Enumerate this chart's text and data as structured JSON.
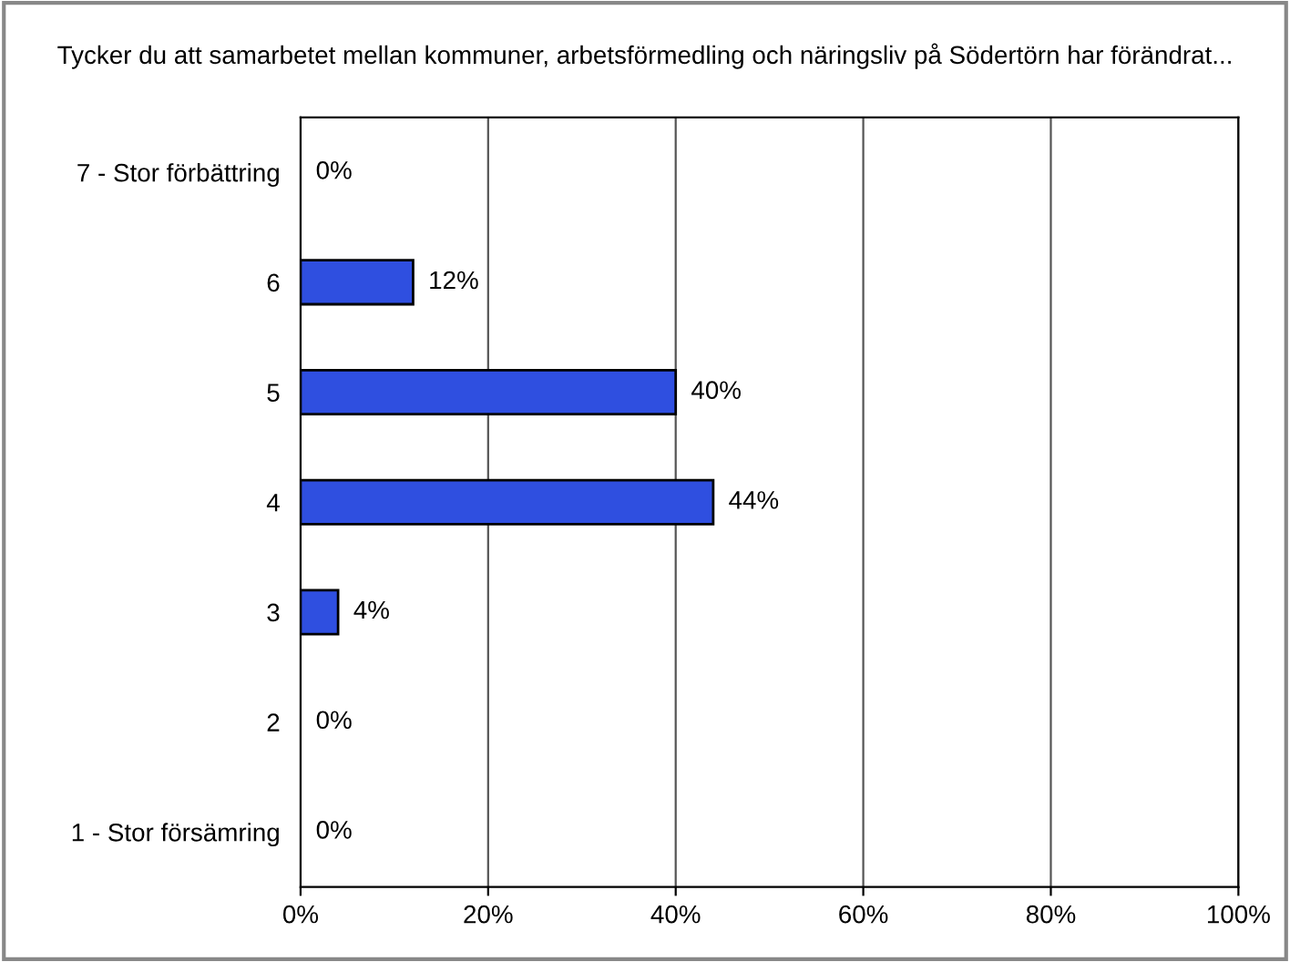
{
  "chart_data": {
    "type": "bar",
    "orientation": "horizontal",
    "title": "Tycker du att samarbetet mellan kommuner, arbetsförmedling och näringsliv på Södertörn har förändrat...",
    "categories": [
      "7 - Stor förbättring",
      "6",
      "5",
      "4",
      "3",
      "2",
      "1 - Stor försämring"
    ],
    "values": [
      0,
      12,
      40,
      44,
      4,
      0,
      0
    ],
    "value_labels": [
      "0%",
      "12%",
      "40%",
      "44%",
      "4%",
      "0%",
      "0%"
    ],
    "color": "#2f4fe0",
    "xlim": [
      0,
      100
    ],
    "xticks": [
      {
        "value": 0,
        "label": "0%"
      },
      {
        "value": 20,
        "label": "20%"
      },
      {
        "value": 40,
        "label": "40%"
      },
      {
        "value": 60,
        "label": "60%"
      },
      {
        "value": 80,
        "label": "80%"
      },
      {
        "value": 100,
        "label": "100%"
      }
    ],
    "grid": "x",
    "legend": false
  }
}
